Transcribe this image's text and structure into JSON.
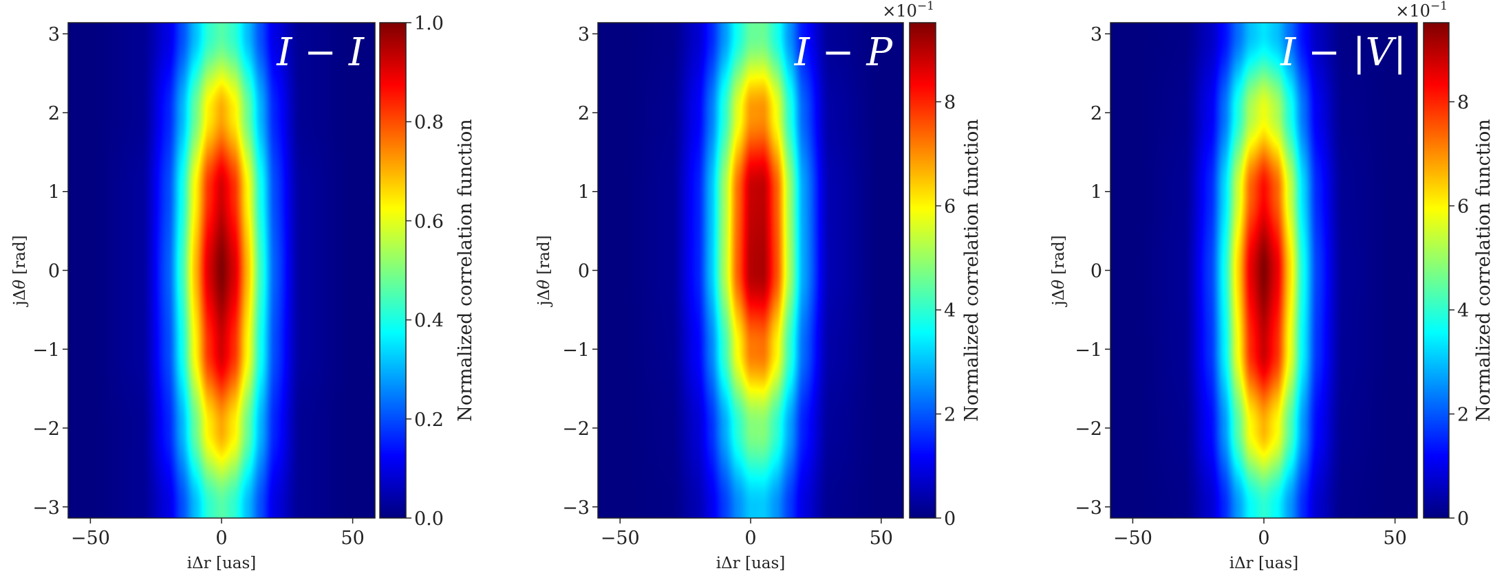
{
  "chart_data": [
    {
      "type": "heatmap",
      "title": "I − I",
      "xlabel": "iΔr [uas]",
      "ylabel_prefix": "jΔ",
      "ylabel_symbol": "θ",
      "ylabel_suffix": " [rad]",
      "xlim": [
        -58.5,
        58.5
      ],
      "ylim": [
        -3.1416,
        3.1416
      ],
      "xticks": [
        -50,
        0,
        50
      ],
      "xtick_labels": [
        "−50",
        "0",
        "50"
      ],
      "yticks": [
        -3,
        -2,
        -1,
        0,
        1,
        2,
        3
      ],
      "ytick_labels": [
        "−3",
        "−2",
        "−1",
        "0",
        "1",
        "2",
        "3"
      ],
      "colormap": "jet",
      "colorbar": {
        "label": "Normalized correlation function",
        "range": [
          0,
          1.0
        ],
        "ticks": [
          0,
          0.2,
          0.4,
          0.6,
          0.8,
          1.0
        ],
        "tick_labels": [
          "0.0",
          "0.2",
          "0.4",
          "0.6",
          "0.8",
          "1.0"
        ],
        "offset_text": ""
      },
      "grid_x": [
        -50,
        -30,
        -20,
        -15,
        -10,
        -5,
        0,
        5,
        10,
        15,
        20,
        30,
        50
      ],
      "grid_y": [
        -3,
        -2,
        -1,
        0,
        1,
        2,
        3
      ],
      "values": [
        [
          0,
          0.02,
          0.1,
          0.2,
          0.31,
          0.42,
          0.46,
          0.42,
          0.31,
          0.2,
          0.1,
          0.02,
          0
        ],
        [
          0,
          0.02,
          0.16,
          0.3,
          0.48,
          0.64,
          0.71,
          0.64,
          0.48,
          0.3,
          0.16,
          0.02,
          0
        ],
        [
          0,
          0.03,
          0.2,
          0.39,
          0.63,
          0.83,
          0.92,
          0.83,
          0.63,
          0.39,
          0.2,
          0.03,
          0
        ],
        [
          0,
          0.03,
          0.22,
          0.43,
          0.69,
          0.91,
          1.0,
          0.91,
          0.69,
          0.43,
          0.22,
          0.03,
          0
        ],
        [
          0,
          0.03,
          0.2,
          0.39,
          0.63,
          0.83,
          0.92,
          0.83,
          0.63,
          0.39,
          0.2,
          0.03,
          0
        ],
        [
          0,
          0.02,
          0.16,
          0.3,
          0.48,
          0.64,
          0.71,
          0.64,
          0.48,
          0.3,
          0.16,
          0.02,
          0
        ],
        [
          0,
          0.02,
          0.1,
          0.2,
          0.31,
          0.42,
          0.46,
          0.42,
          0.31,
          0.2,
          0.1,
          0.02,
          0
        ]
      ]
    },
    {
      "type": "heatmap",
      "title": "I − P",
      "xlabel": "iΔr [uas]",
      "ylabel_prefix": "jΔ",
      "ylabel_symbol": "θ",
      "ylabel_suffix": " [rad]",
      "xlim": [
        -58.5,
        58.5
      ],
      "ylim": [
        -3.1416,
        3.1416
      ],
      "xticks": [
        -50,
        0,
        50
      ],
      "xtick_labels": [
        "−50",
        "0",
        "50"
      ],
      "yticks": [
        -3,
        -2,
        -1,
        0,
        1,
        2,
        3
      ],
      "ytick_labels": [
        "−3",
        "−2",
        "−1",
        "0",
        "1",
        "2",
        "3"
      ],
      "colormap": "jet",
      "colorbar": {
        "label": "Normalized correlation function",
        "range": [
          0,
          9.52
        ],
        "ticks": [
          0,
          2,
          4,
          6,
          8
        ],
        "tick_labels": [
          "0",
          "2",
          "4",
          "6",
          "8"
        ],
        "offset_text": "×10",
        "offset_exp": "−1"
      },
      "grid_x": [
        -50,
        -30,
        -20,
        -15,
        -10,
        -5,
        0,
        5,
        10,
        15,
        20,
        30,
        50
      ],
      "grid_y": [
        -3,
        -2,
        -1,
        0,
        1,
        2,
        3
      ],
      "values": [
        [
          0,
          0.07,
          0.5,
          1.02,
          1.75,
          2.51,
          3.05,
          3.08,
          2.57,
          1.73,
          0.94,
          0.16,
          0
        ],
        [
          0,
          0.11,
          0.79,
          1.61,
          2.75,
          3.95,
          4.79,
          4.84,
          4.05,
          2.72,
          1.48,
          0.25,
          0
        ],
        [
          0,
          0.17,
          1.19,
          2.41,
          4.12,
          5.93,
          7.19,
          7.26,
          6.08,
          4.08,
          2.22,
          0.37,
          0
        ],
        [
          0,
          0.21,
          1.49,
          3.03,
          5.18,
          7.45,
          9.03,
          9.12,
          7.63,
          5.12,
          2.79,
          0.47,
          0
        ],
        [
          0,
          0.21,
          1.46,
          2.96,
          5.07,
          7.3,
          8.85,
          8.94,
          7.48,
          5.02,
          2.74,
          0.46,
          0
        ],
        [
          0,
          0.16,
          1.14,
          2.32,
          3.96,
          5.7,
          6.92,
          6.99,
          5.85,
          3.92,
          2.14,
          0.36,
          0
        ],
        [
          0,
          0.11,
          0.75,
          1.51,
          2.59,
          3.73,
          4.52,
          4.57,
          3.82,
          2.56,
          1.4,
          0.23,
          0
        ]
      ]
    },
    {
      "type": "heatmap",
      "title": "I − |V|",
      "xlabel": "iΔr [uas]",
      "ylabel_prefix": "jΔ",
      "ylabel_symbol": "θ",
      "ylabel_suffix": " [rad]",
      "xlim": [
        -58.5,
        58.5
      ],
      "ylim": [
        -3.1416,
        3.1416
      ],
      "xticks": [
        -50,
        0,
        50
      ],
      "xtick_labels": [
        "−50",
        "0",
        "50"
      ],
      "yticks": [
        -3,
        -2,
        -1,
        0,
        1,
        2,
        3
      ],
      "ytick_labels": [
        "−3",
        "−2",
        "−1",
        "0",
        "1",
        "2",
        "3"
      ],
      "colormap": "jet",
      "colorbar": {
        "label": "Normalized correlation function",
        "range": [
          0,
          9.52
        ],
        "ticks": [
          0,
          2,
          4,
          6,
          8
        ],
        "tick_labels": [
          "0",
          "2",
          "4",
          "6",
          "8"
        ],
        "offset_text": "×10",
        "offset_exp": "−1"
      },
      "grid_x": [
        -50,
        -30,
        -20,
        -15,
        -10,
        -5,
        0,
        5,
        10,
        15,
        20,
        30,
        50
      ],
      "grid_y": [
        -3,
        -2,
        -1,
        0,
        1,
        2,
        3
      ],
      "values": [
        [
          0,
          0.1,
          0.76,
          1.56,
          2.63,
          3.59,
          3.99,
          3.59,
          2.63,
          1.56,
          0.76,
          0.1,
          0
        ],
        [
          0,
          0.16,
          1.26,
          2.59,
          4.39,
          5.99,
          6.65,
          5.99,
          4.39,
          2.59,
          1.26,
          0.16,
          0
        ],
        [
          0,
          0.21,
          1.68,
          3.45,
          5.83,
          7.96,
          8.84,
          7.96,
          5.83,
          3.45,
          1.68,
          0.21,
          0
        ],
        [
          0,
          0.23,
          1.81,
          3.71,
          6.27,
          8.55,
          9.5,
          8.55,
          6.27,
          3.71,
          1.81,
          0.23,
          0
        ],
        [
          0,
          0.2,
          1.57,
          3.23,
          5.46,
          7.44,
          8.27,
          7.44,
          5.46,
          3.23,
          1.57,
          0.2,
          0
        ],
        [
          0,
          0.14,
          1.1,
          2.26,
          3.83,
          5.22,
          5.8,
          5.22,
          3.83,
          2.26,
          1.1,
          0.14,
          0
        ],
        [
          0,
          0.08,
          0.63,
          1.3,
          2.2,
          3.0,
          3.33,
          3.0,
          2.2,
          1.3,
          0.63,
          0.08,
          0
        ]
      ]
    }
  ]
}
